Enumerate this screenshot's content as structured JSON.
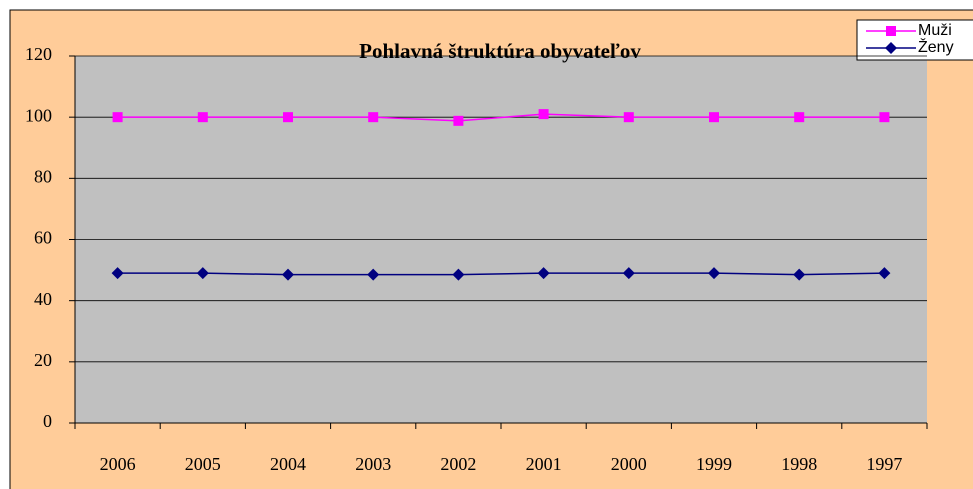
{
  "chart_data": {
    "type": "line",
    "title": "Pohlavná štruktúra obyvateľov",
    "categories": [
      "2006",
      "2005",
      "2004",
      "2003",
      "2002",
      "2001",
      "2000",
      "1999",
      "1998",
      "1997"
    ],
    "series": [
      {
        "name": "Muži",
        "color": "#ff00ff",
        "marker": "square",
        "values": [
          100,
          100,
          100,
          100,
          98.8,
          101,
          100,
          100,
          100,
          100
        ]
      },
      {
        "name": "Ženy",
        "color": "#000080",
        "marker": "diamond",
        "values": [
          49,
          49,
          48.5,
          48.5,
          48.5,
          49,
          49,
          49,
          48.5,
          49
        ]
      }
    ],
    "ylim": [
      0,
      120
    ],
    "yticks": [
      0,
      20,
      40,
      60,
      80,
      100,
      120
    ],
    "grid": true,
    "legend": "top-right"
  }
}
